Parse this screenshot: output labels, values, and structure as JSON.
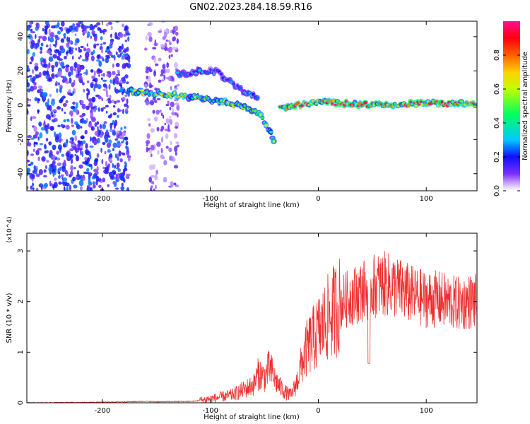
{
  "title": "GN02.2023.284.18.59.R16",
  "chart_data": [
    {
      "type": "heatmap",
      "xlabel": "Height of straight line (km)",
      "ylabel": "Frequency (Hz)",
      "xlim": [
        -270,
        147
      ],
      "ylim": [
        -50,
        49
      ],
      "x_ticks": [
        -200,
        -100,
        0,
        100
      ],
      "y_ticks": [
        -40,
        -20,
        0,
        20,
        40
      ],
      "colorbar": {
        "label": "Normalized spectral amplitude",
        "range": [
          0,
          1
        ],
        "ticks": [
          0.0,
          0.2,
          0.4,
          0.6,
          0.8
        ],
        "colormap": [
          "#ffffff",
          "#b58cf0",
          "#5500ff",
          "#0000ff",
          "#00c8ff",
          "#00ff80",
          "#c8ff00",
          "#ffd000",
          "#ff6000",
          "#ff0000",
          "#ff00aa"
        ]
      },
      "features": [
        {
          "name": "broadband noise",
          "x_range": [
            -270,
            -175
          ],
          "freq_range": [
            -50,
            49
          ],
          "amplitude": 0.15
        },
        {
          "name": "noise column",
          "x_range": [
            -160,
            -130
          ],
          "freq_range": [
            -50,
            49
          ],
          "amplitude": 0.08
        },
        {
          "name": "main trace",
          "points": [
            [
              -175,
              8
            ],
            [
              -150,
              7
            ],
            [
              -120,
              5
            ],
            [
              -100,
              3
            ],
            [
              -80,
              1
            ],
            [
              -65,
              -2
            ],
            [
              -55,
              -5
            ],
            [
              -45,
              -15
            ],
            [
              -40,
              -22
            ]
          ],
          "amplitude": 0.6
        },
        {
          "name": "upper branch",
          "points": [
            [
              -130,
              18
            ],
            [
              -110,
              20
            ],
            [
              -95,
              20
            ],
            [
              -85,
              15
            ],
            [
              -70,
              8
            ],
            [
              -55,
              4
            ]
          ],
          "amplitude": 0.3
        },
        {
          "name": "steady trace",
          "points": [
            [
              -35,
              -2
            ],
            [
              -20,
              0
            ],
            [
              0,
              2
            ],
            [
              50,
              0
            ],
            [
              100,
              1
            ],
            [
              147,
              1
            ]
          ],
          "amplitude": 0.95
        }
      ]
    },
    {
      "type": "line",
      "xlabel": "Height of straight line (km)",
      "ylabel": "SNR (10 * v/v)",
      "y_multiplier": "(x10^4)",
      "xlim": [
        -270,
        147
      ],
      "ylim": [
        0,
        3.35
      ],
      "x_ticks": [
        -200,
        -100,
        0,
        100
      ],
      "y_ticks": [
        0,
        1,
        2,
        3
      ],
      "color": "#ee3030",
      "series": [
        {
          "x": [
            -270,
            -200,
            -160,
            -150,
            -115,
            -100,
            -80,
            -70,
            -60,
            -55,
            -50,
            -45,
            -40,
            -35,
            -30,
            -25,
            -20,
            -15,
            -10,
            0,
            10,
            20,
            30,
            40,
            50,
            60,
            70,
            80,
            90,
            100,
            110,
            120,
            130,
            140,
            147
          ],
          "values": [
            0.0,
            0.01,
            0.03,
            0.02,
            0.03,
            0.08,
            0.15,
            0.25,
            0.35,
            0.6,
            0.5,
            0.7,
            0.45,
            0.3,
            0.2,
            0.15,
            0.4,
            0.8,
            1.1,
            1.4,
            1.7,
            1.95,
            2.1,
            2.2,
            2.3,
            2.35,
            2.3,
            2.2,
            2.1,
            2.05,
            2.05,
            2.0,
            1.95,
            2.0,
            2.0
          ]
        }
      ]
    }
  ]
}
